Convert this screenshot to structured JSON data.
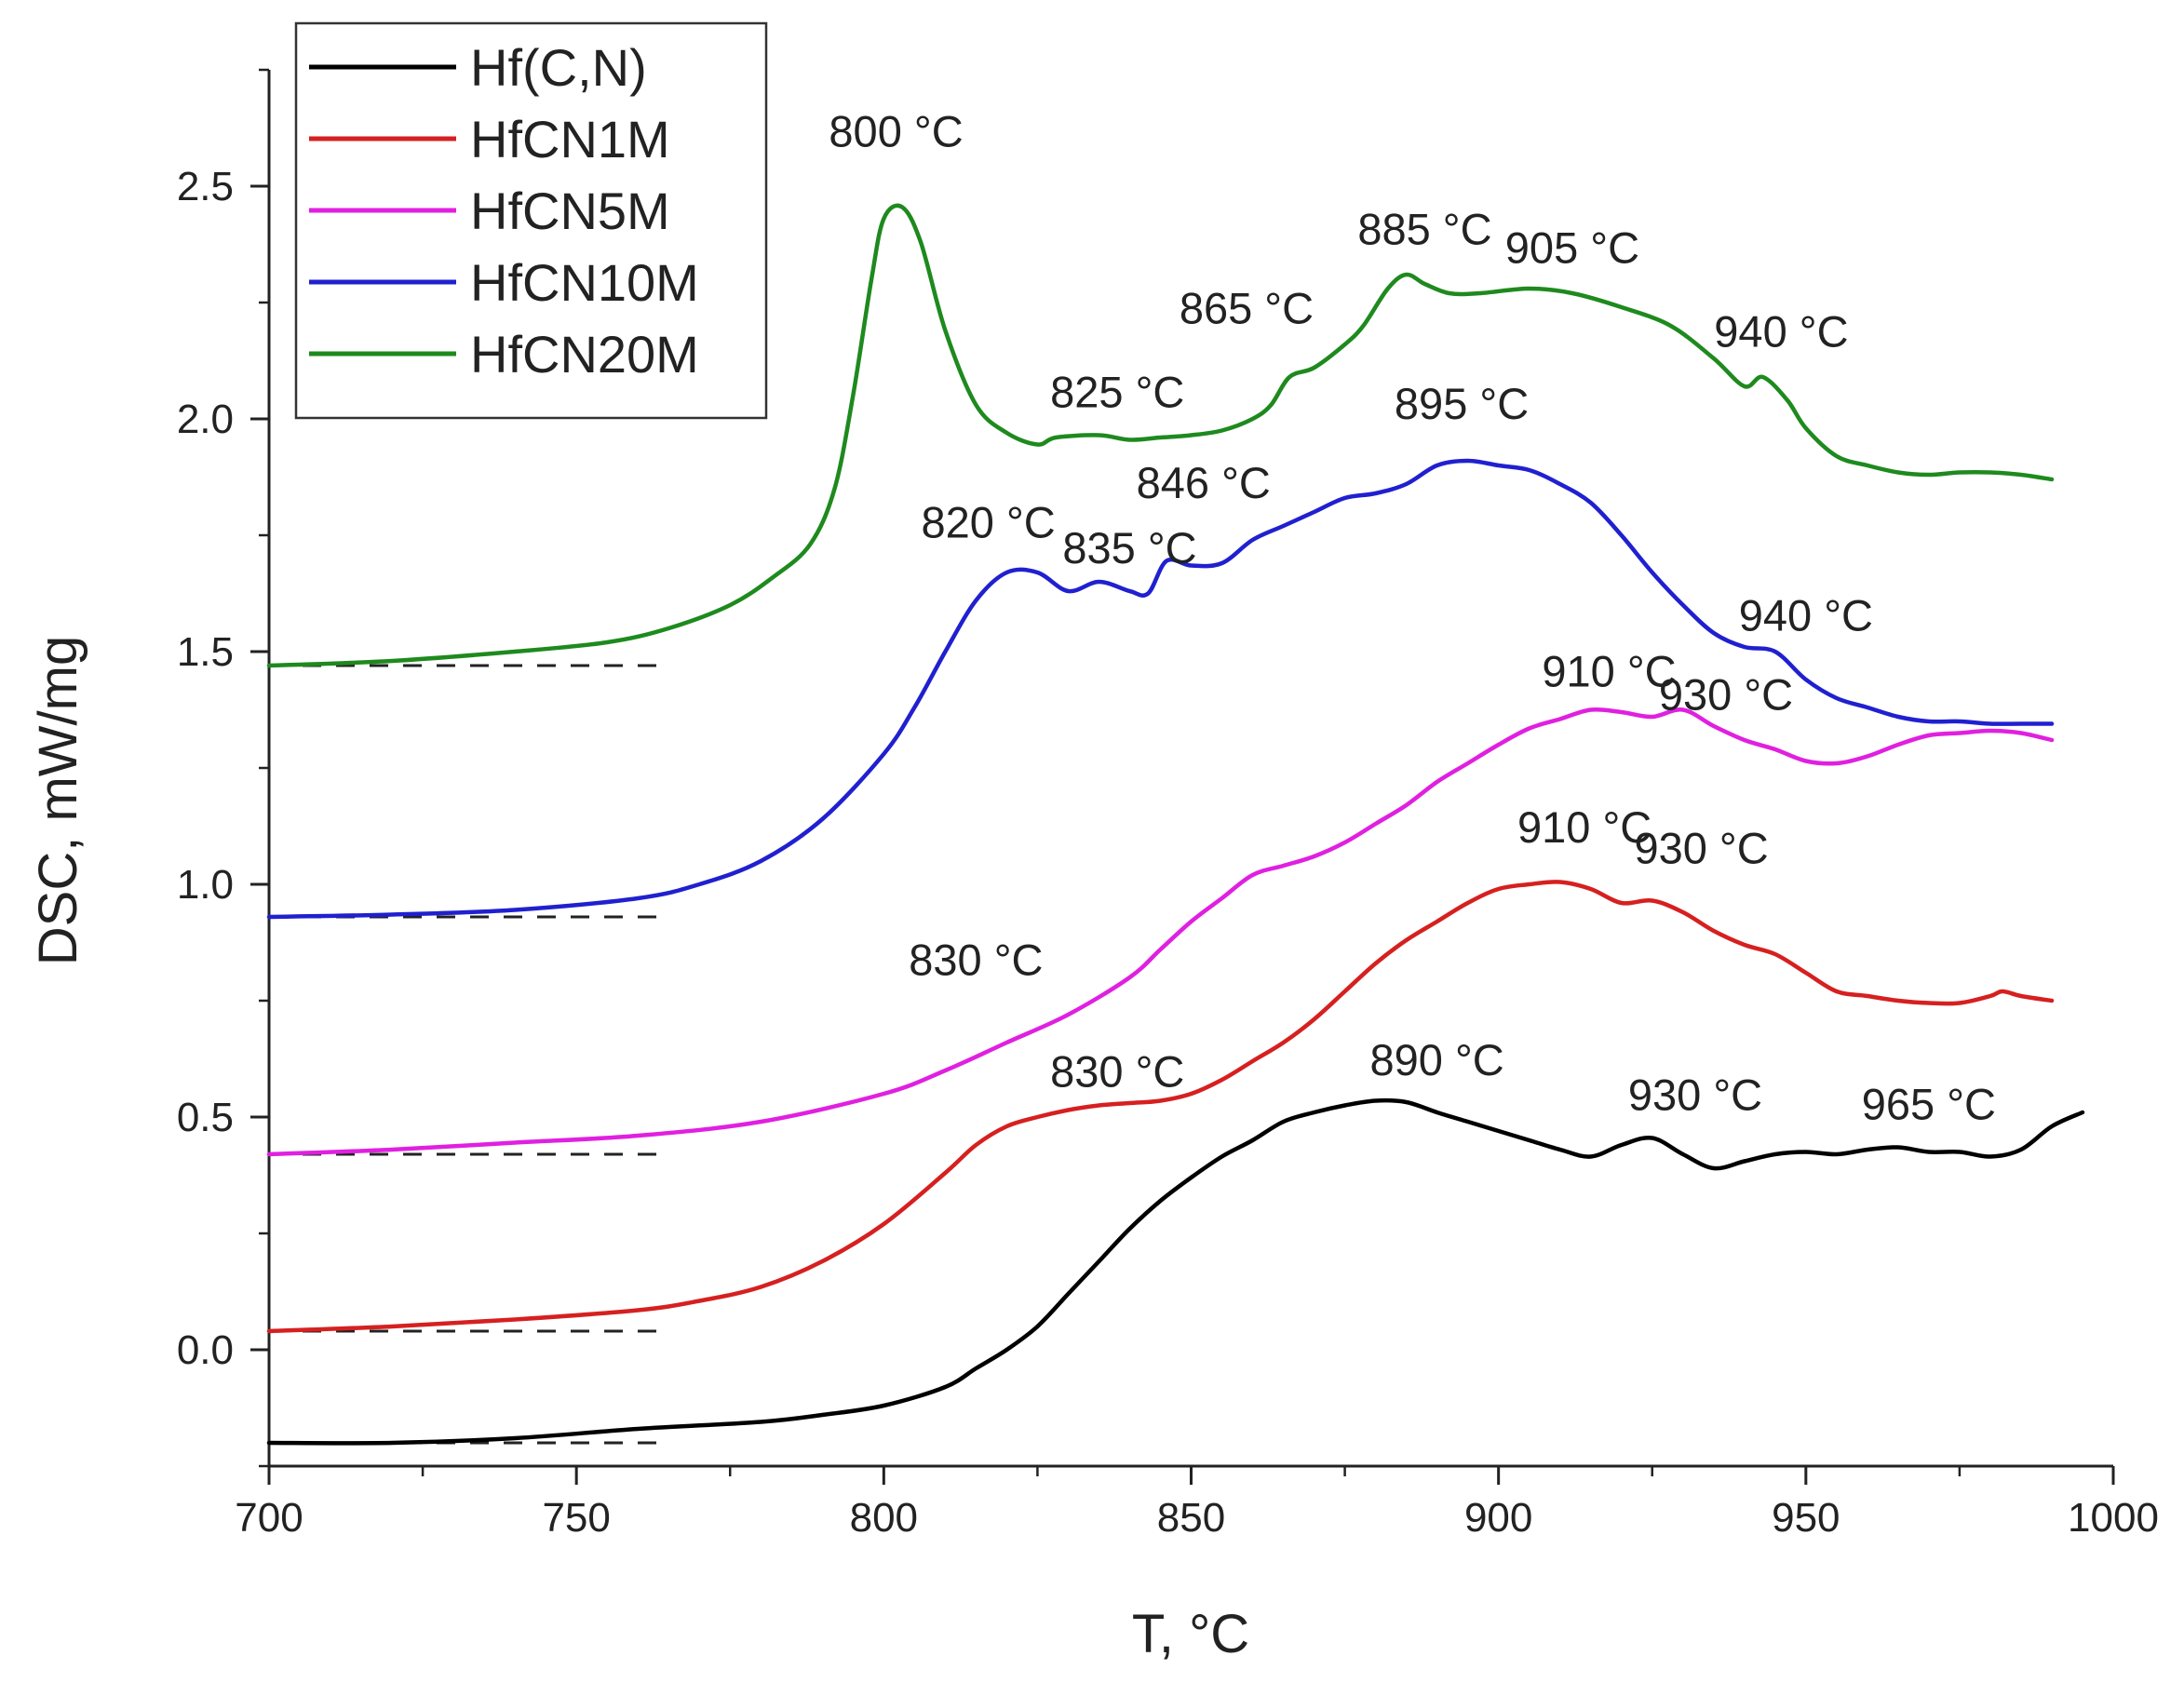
{
  "chart_data": {
    "type": "line",
    "title": "",
    "xlabel": "T, °C",
    "ylabel": "DSC, mW/mg",
    "xlim": [
      700,
      1000
    ],
    "ylim": [
      -0.25,
      2.75
    ],
    "x_ticks": [
      "700",
      "750",
      "800",
      "850",
      "900",
      "950",
      "1000"
    ],
    "y_ticks": [
      "0.0",
      "0.5",
      "1.0",
      "1.5",
      "2.0",
      "2.5"
    ],
    "legend_position": "top-left",
    "series": [
      {
        "name": "Hf(C,N)",
        "color": "#000000",
        "baseline": -0.2,
        "baseline_end_x": 763,
        "points": [
          [
            700,
            -0.2
          ],
          [
            720,
            -0.2
          ],
          [
            740,
            -0.19
          ],
          [
            760,
            -0.17
          ],
          [
            780,
            -0.155
          ],
          [
            790,
            -0.14
          ],
          [
            800,
            -0.12
          ],
          [
            810,
            -0.08
          ],
          [
            815,
            -0.04
          ],
          [
            820,
            0.0
          ],
          [
            825,
            0.05
          ],
          [
            830,
            0.12
          ],
          [
            835,
            0.19
          ],
          [
            840,
            0.26
          ],
          [
            845,
            0.32
          ],
          [
            850,
            0.37
          ],
          [
            855,
            0.415
          ],
          [
            860,
            0.45
          ],
          [
            865,
            0.49
          ],
          [
            870,
            0.51
          ],
          [
            875,
            0.525
          ],
          [
            880,
            0.535
          ],
          [
            885,
            0.532
          ],
          [
            890,
            0.51
          ],
          [
            895,
            0.49
          ],
          [
            900,
            0.47
          ],
          [
            905,
            0.45
          ],
          [
            910,
            0.43
          ],
          [
            915,
            0.415
          ],
          [
            920,
            0.44
          ],
          [
            925,
            0.455
          ],
          [
            930,
            0.42
          ],
          [
            935,
            0.39
          ],
          [
            940,
            0.405
          ],
          [
            945,
            0.42
          ],
          [
            950,
            0.425
          ],
          [
            955,
            0.42
          ],
          [
            960,
            0.43
          ],
          [
            965,
            0.435
          ],
          [
            970,
            0.425
          ],
          [
            975,
            0.425
          ],
          [
            980,
            0.415
          ],
          [
            985,
            0.43
          ],
          [
            990,
            0.48
          ],
          [
            995,
            0.51
          ]
        ]
      },
      {
        "name": "HfCN1M",
        "color": "#d62020",
        "baseline": 0.04,
        "baseline_end_x": 763,
        "points": [
          [
            700,
            0.04
          ],
          [
            720,
            0.05
          ],
          [
            740,
            0.065
          ],
          [
            760,
            0.085
          ],
          [
            770,
            0.105
          ],
          [
            780,
            0.135
          ],
          [
            790,
            0.19
          ],
          [
            800,
            0.27
          ],
          [
            810,
            0.38
          ],
          [
            815,
            0.44
          ],
          [
            820,
            0.48
          ],
          [
            825,
            0.5
          ],
          [
            830,
            0.515
          ],
          [
            835,
            0.525
          ],
          [
            840,
            0.53
          ],
          [
            845,
            0.535
          ],
          [
            850,
            0.55
          ],
          [
            855,
            0.58
          ],
          [
            860,
            0.62
          ],
          [
            865,
            0.66
          ],
          [
            870,
            0.71
          ],
          [
            875,
            0.77
          ],
          [
            880,
            0.83
          ],
          [
            885,
            0.88
          ],
          [
            890,
            0.92
          ],
          [
            895,
            0.96
          ],
          [
            900,
            0.99
          ],
          [
            905,
            1.0
          ],
          [
            910,
            1.005
          ],
          [
            915,
            0.99
          ],
          [
            920,
            0.96
          ],
          [
            925,
            0.965
          ],
          [
            930,
            0.94
          ],
          [
            935,
            0.9
          ],
          [
            940,
            0.87
          ],
          [
            945,
            0.85
          ],
          [
            950,
            0.81
          ],
          [
            955,
            0.77
          ],
          [
            960,
            0.76
          ],
          [
            965,
            0.75
          ],
          [
            970,
            0.745
          ],
          [
            975,
            0.745
          ],
          [
            980,
            0.76
          ],
          [
            982,
            0.77
          ],
          [
            985,
            0.76
          ],
          [
            990,
            0.75
          ]
        ]
      },
      {
        "name": "HfCN5M",
        "color": "#e020e0",
        "baseline": 0.42,
        "baseline_end_x": 763,
        "points": [
          [
            700,
            0.42
          ],
          [
            720,
            0.43
          ],
          [
            740,
            0.445
          ],
          [
            760,
            0.46
          ],
          [
            780,
            0.49
          ],
          [
            800,
            0.55
          ],
          [
            810,
            0.6
          ],
          [
            820,
            0.66
          ],
          [
            830,
            0.72
          ],
          [
            840,
            0.8
          ],
          [
            845,
            0.86
          ],
          [
            850,
            0.92
          ],
          [
            855,
            0.97
          ],
          [
            860,
            1.02
          ],
          [
            865,
            1.04
          ],
          [
            870,
            1.06
          ],
          [
            875,
            1.09
          ],
          [
            880,
            1.13
          ],
          [
            885,
            1.17
          ],
          [
            890,
            1.22
          ],
          [
            895,
            1.26
          ],
          [
            900,
            1.3
          ],
          [
            905,
            1.335
          ],
          [
            910,
            1.355
          ],
          [
            915,
            1.375
          ],
          [
            920,
            1.37
          ],
          [
            925,
            1.36
          ],
          [
            930,
            1.375
          ],
          [
            935,
            1.34
          ],
          [
            940,
            1.31
          ],
          [
            945,
            1.29
          ],
          [
            950,
            1.265
          ],
          [
            955,
            1.26
          ],
          [
            960,
            1.275
          ],
          [
            965,
            1.3
          ],
          [
            970,
            1.32
          ],
          [
            975,
            1.325
          ],
          [
            980,
            1.33
          ],
          [
            985,
            1.325
          ],
          [
            990,
            1.31
          ]
        ]
      },
      {
        "name": "HfCN10M",
        "color": "#2020d0",
        "baseline": 0.93,
        "baseline_end_x": 763,
        "points": [
          [
            700,
            0.93
          ],
          [
            720,
            0.935
          ],
          [
            740,
            0.945
          ],
          [
            760,
            0.97
          ],
          [
            770,
            1.0
          ],
          [
            780,
            1.05
          ],
          [
            790,
            1.14
          ],
          [
            800,
            1.28
          ],
          [
            805,
            1.38
          ],
          [
            810,
            1.5
          ],
          [
            815,
            1.61
          ],
          [
            820,
            1.67
          ],
          [
            825,
            1.67
          ],
          [
            830,
            1.63
          ],
          [
            835,
            1.65
          ],
          [
            840,
            1.63
          ],
          [
            843,
            1.625
          ],
          [
            846,
            1.695
          ],
          [
            850,
            1.685
          ],
          [
            855,
            1.69
          ],
          [
            860,
            1.74
          ],
          [
            865,
            1.77
          ],
          [
            870,
            1.8
          ],
          [
            875,
            1.83
          ],
          [
            880,
            1.84
          ],
          [
            885,
            1.86
          ],
          [
            890,
            1.9
          ],
          [
            895,
            1.91
          ],
          [
            900,
            1.9
          ],
          [
            905,
            1.89
          ],
          [
            910,
            1.86
          ],
          [
            915,
            1.82
          ],
          [
            920,
            1.75
          ],
          [
            925,
            1.67
          ],
          [
            930,
            1.6
          ],
          [
            935,
            1.54
          ],
          [
            940,
            1.51
          ],
          [
            945,
            1.5
          ],
          [
            950,
            1.44
          ],
          [
            955,
            1.4
          ],
          [
            960,
            1.38
          ],
          [
            965,
            1.36
          ],
          [
            970,
            1.35
          ],
          [
            975,
            1.35
          ],
          [
            980,
            1.345
          ],
          [
            985,
            1.345
          ],
          [
            990,
            1.345
          ]
        ]
      },
      {
        "name": "HfCN20M",
        "color": "#1e8a1e",
        "baseline": 1.47,
        "baseline_end_x": 763,
        "points": [
          [
            700,
            1.47
          ],
          [
            720,
            1.48
          ],
          [
            740,
            1.5
          ],
          [
            755,
            1.52
          ],
          [
            765,
            1.55
          ],
          [
            775,
            1.6
          ],
          [
            782,
            1.66
          ],
          [
            788,
            1.73
          ],
          [
            792,
            1.85
          ],
          [
            795,
            2.05
          ],
          [
            798,
            2.3
          ],
          [
            800,
            2.43
          ],
          [
            803,
            2.455
          ],
          [
            806,
            2.38
          ],
          [
            810,
            2.19
          ],
          [
            815,
            2.03
          ],
          [
            820,
            1.97
          ],
          [
            825,
            1.945
          ],
          [
            828,
            1.96
          ],
          [
            835,
            1.965
          ],
          [
            840,
            1.955
          ],
          [
            845,
            1.96
          ],
          [
            850,
            1.965
          ],
          [
            855,
            1.975
          ],
          [
            860,
            2.0
          ],
          [
            863,
            2.03
          ],
          [
            866,
            2.09
          ],
          [
            870,
            2.11
          ],
          [
            875,
            2.16
          ],
          [
            878,
            2.2
          ],
          [
            882,
            2.28
          ],
          [
            885,
            2.31
          ],
          [
            888,
            2.29
          ],
          [
            892,
            2.27
          ],
          [
            897,
            2.27
          ],
          [
            905,
            2.28
          ],
          [
            912,
            2.27
          ],
          [
            920,
            2.24
          ],
          [
            928,
            2.2
          ],
          [
            935,
            2.13
          ],
          [
            940,
            2.07
          ],
          [
            943,
            2.09
          ],
          [
            947,
            2.04
          ],
          [
            950,
            1.98
          ],
          [
            955,
            1.92
          ],
          [
            960,
            1.9
          ],
          [
            965,
            1.885
          ],
          [
            970,
            1.88
          ],
          [
            975,
            1.885
          ],
          [
            980,
            1.885
          ],
          [
            985,
            1.88
          ],
          [
            990,
            1.87
          ]
        ]
      }
    ],
    "annotations": [
      {
        "text": "800 °C",
        "x": 802,
        "y": 2.585
      },
      {
        "text": "825 °C",
        "x": 838,
        "y": 2.025
      },
      {
        "text": "865 °C",
        "x": 859,
        "y": 2.205
      },
      {
        "text": "885 °C",
        "x": 888,
        "y": 2.375
      },
      {
        "text": "905 °C",
        "x": 912,
        "y": 2.335
      },
      {
        "text": "940 °C",
        "x": 946,
        "y": 2.155
      },
      {
        "text": "895 °C",
        "x": 894,
        "y": 2.0
      },
      {
        "text": "846 °C",
        "x": 852,
        "y": 1.83
      },
      {
        "text": "820 °C",
        "x": 817,
        "y": 1.745
      },
      {
        "text": "835 °C",
        "x": 840,
        "y": 1.69
      },
      {
        "text": "940 °C",
        "x": 950,
        "y": 1.545
      },
      {
        "text": "910 °C",
        "x": 918,
        "y": 1.425
      },
      {
        "text": "930 °C",
        "x": 937,
        "y": 1.375
      },
      {
        "text": "830 °C",
        "x": 815,
        "y": 0.805
      },
      {
        "text": "910 °C",
        "x": 914,
        "y": 1.09
      },
      {
        "text": "930 °C",
        "x": 933,
        "y": 1.045
      },
      {
        "text": "830 °C",
        "x": 838,
        "y": 0.565
      },
      {
        "text": "890 °C",
        "x": 890,
        "y": 0.59
      },
      {
        "text": "930 °C",
        "x": 932,
        "y": 0.515
      },
      {
        "text": "965 °C",
        "x": 970,
        "y": 0.495
      }
    ]
  }
}
